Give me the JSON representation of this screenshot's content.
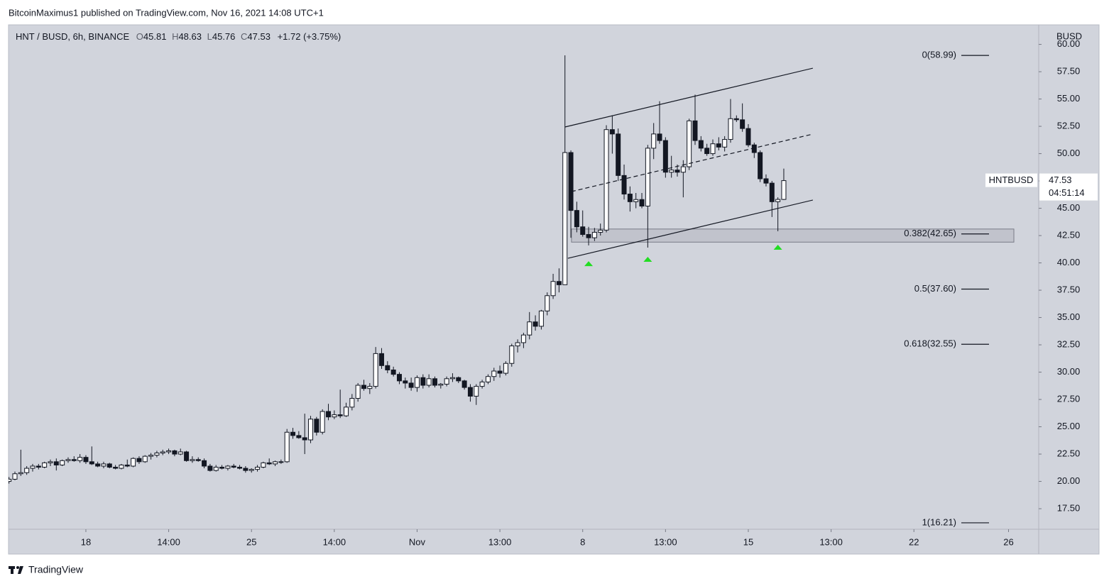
{
  "header": {
    "publisher": "BitcoinMaximus1 published on TradingView.com, Nov 16, 2021 14:08 UTC+1"
  },
  "footer": {
    "brand": "TradingView"
  },
  "chart_data": {
    "type": "candlestick",
    "symbol": "HNT / BUSD, 6h, BINANCE",
    "ohlc_letters": [
      "O",
      "H",
      "L",
      "C"
    ],
    "change": "+1.72 (+3.75%)",
    "currency": "BUSD",
    "ticker": "HNTBUSD",
    "countdown": "04:51:14",
    "up_color": "#ffffff",
    "down_color": "#131722",
    "xlim": [
      -0.08,
      174.1
    ],
    "ylim": [
      15.62,
      61.79
    ],
    "xticks": [
      {
        "value": 13,
        "label": "18"
      },
      {
        "value": 27,
        "label": "14:00"
      },
      {
        "value": 41,
        "label": "25"
      },
      {
        "value": 55,
        "label": "14:00"
      },
      {
        "value": 69,
        "label": "Nov"
      },
      {
        "value": 83,
        "label": "13:00"
      },
      {
        "value": 97,
        "label": "8"
      },
      {
        "value": 111,
        "label": "13:00"
      },
      {
        "value": 125,
        "label": "15"
      },
      {
        "value": 139,
        "label": "13:00"
      },
      {
        "value": 153,
        "label": "22"
      },
      {
        "value": 169,
        "label": "26"
      }
    ],
    "yticks": [
      {
        "value": 17.5,
        "label": "17.50"
      },
      {
        "value": 20,
        "label": "20.00"
      },
      {
        "value": 22.5,
        "label": "22.50"
      },
      {
        "value": 25,
        "label": "25.00"
      },
      {
        "value": 27.5,
        "label": "27.50"
      },
      {
        "value": 30,
        "label": "30.00"
      },
      {
        "value": 32.5,
        "label": "32.50"
      },
      {
        "value": 35,
        "label": "35.00"
      },
      {
        "value": 37.5,
        "label": "37.50"
      },
      {
        "value": 40,
        "label": "40.00"
      },
      {
        "value": 42.5,
        "label": "42.50"
      },
      {
        "value": 45,
        "label": "45.00"
      },
      {
        "value": 47.5,
        "label": "47.50"
      },
      {
        "value": 50,
        "label": "50.00"
      },
      {
        "value": 52.5,
        "label": "52.50"
      },
      {
        "value": 55,
        "label": "55.00"
      },
      {
        "value": 57.5,
        "label": "57.50"
      },
      {
        "value": 60,
        "label": "60.00"
      }
    ],
    "ohlc": [
      [
        20.0,
        20.4,
        19.8,
        20.2
      ],
      [
        20.2,
        20.9,
        20.1,
        20.7
      ],
      [
        20.7,
        22.9,
        20.5,
        20.8
      ],
      [
        20.8,
        21.4,
        20.6,
        21.2
      ],
      [
        21.2,
        21.6,
        20.9,
        21.4
      ],
      [
        21.4,
        21.6,
        21.1,
        21.3
      ],
      [
        21.3,
        21.8,
        21.2,
        21.7
      ],
      [
        21.7,
        22.0,
        21.4,
        21.8
      ],
      [
        21.8,
        22.1,
        21.0,
        21.5
      ],
      [
        21.5,
        22.0,
        21.4,
        21.9
      ],
      [
        21.9,
        22.2,
        21.7,
        22.0
      ],
      [
        22.0,
        22.3,
        21.8,
        21.9
      ],
      [
        21.9,
        22.5,
        21.7,
        22.2
      ],
      [
        22.2,
        22.4,
        21.6,
        21.8
      ],
      [
        21.8,
        23.2,
        21.5,
        21.6
      ],
      [
        21.6,
        21.8,
        21.3,
        21.4
      ],
      [
        21.4,
        21.8,
        21.2,
        21.6
      ],
      [
        21.6,
        21.7,
        21.2,
        21.3
      ],
      [
        21.3,
        21.5,
        21.1,
        21.2
      ],
      [
        21.2,
        21.6,
        21.1,
        21.5
      ],
      [
        21.5,
        22.0,
        21.3,
        21.4
      ],
      [
        21.4,
        22.2,
        21.3,
        22.1
      ],
      [
        22.1,
        22.3,
        21.6,
        21.8
      ],
      [
        21.8,
        22.4,
        21.7,
        22.3
      ],
      [
        22.3,
        22.6,
        22.0,
        22.4
      ],
      [
        22.4,
        22.8,
        22.2,
        22.6
      ],
      [
        22.6,
        22.9,
        22.4,
        22.7
      ],
      [
        22.7,
        23.0,
        22.5,
        22.8
      ],
      [
        22.8,
        22.9,
        22.3,
        22.5
      ],
      [
        22.5,
        23.0,
        22.4,
        22.7
      ],
      [
        22.7,
        22.8,
        21.8,
        21.9
      ],
      [
        21.9,
        22.3,
        21.7,
        22.0
      ],
      [
        22.0,
        22.2,
        21.8,
        21.9
      ],
      [
        21.9,
        22.1,
        21.2,
        21.4
      ],
      [
        21.4,
        21.6,
        20.9,
        21.0
      ],
      [
        21.0,
        21.5,
        20.9,
        21.3
      ],
      [
        21.3,
        21.5,
        21.1,
        21.2
      ],
      [
        21.2,
        21.5,
        21.0,
        21.4
      ],
      [
        21.4,
        21.6,
        21.2,
        21.3
      ],
      [
        21.3,
        21.5,
        21.1,
        21.2
      ],
      [
        21.2,
        21.4,
        20.8,
        21.0
      ],
      [
        21.0,
        21.2,
        20.8,
        21.1
      ],
      [
        21.1,
        21.5,
        20.9,
        21.3
      ],
      [
        21.3,
        21.8,
        21.2,
        21.7
      ],
      [
        21.7,
        22.1,
        21.5,
        21.6
      ],
      [
        21.6,
        21.9,
        21.4,
        21.8
      ],
      [
        21.8,
        22.0,
        21.6,
        21.8
      ],
      [
        21.8,
        24.8,
        21.7,
        24.5
      ],
      [
        24.5,
        24.9,
        23.9,
        24.2
      ],
      [
        24.2,
        24.6,
        23.9,
        24.0
      ],
      [
        24.0,
        26.2,
        22.5,
        23.8
      ],
      [
        23.8,
        26.0,
        23.5,
        25.7
      ],
      [
        25.7,
        25.9,
        24.2,
        24.5
      ],
      [
        24.5,
        26.6,
        24.3,
        26.4
      ],
      [
        26.4,
        27.1,
        25.6,
        25.9
      ],
      [
        25.9,
        26.5,
        25.7,
        26.1
      ],
      [
        26.1,
        28.4,
        25.8,
        26.0
      ],
      [
        26.0,
        27.2,
        25.9,
        26.8
      ],
      [
        26.8,
        28.0,
        26.5,
        27.6
      ],
      [
        27.6,
        29.0,
        27.3,
        28.8
      ],
      [
        28.8,
        29.3,
        28.3,
        28.5
      ],
      [
        28.5,
        29.0,
        28.0,
        28.7
      ],
      [
        28.7,
        32.3,
        28.5,
        31.7
      ],
      [
        31.7,
        32.2,
        30.3,
        30.6
      ],
      [
        30.6,
        31.0,
        29.9,
        30.2
      ],
      [
        30.2,
        30.5,
        29.6,
        29.8
      ],
      [
        29.8,
        30.0,
        28.9,
        29.2
      ],
      [
        29.2,
        29.5,
        28.5,
        29.0
      ],
      [
        29.0,
        29.5,
        28.3,
        28.6
      ],
      [
        28.6,
        29.7,
        28.2,
        29.5
      ],
      [
        29.5,
        29.8,
        28.5,
        28.8
      ],
      [
        28.8,
        29.8,
        28.6,
        29.4
      ],
      [
        29.4,
        29.6,
        28.6,
        28.8
      ],
      [
        28.8,
        29.0,
        28.5,
        28.9
      ],
      [
        28.9,
        29.6,
        28.7,
        29.4
      ],
      [
        29.4,
        29.9,
        29.1,
        29.5
      ],
      [
        29.5,
        29.6,
        29.0,
        29.2
      ],
      [
        29.2,
        29.3,
        28.4,
        28.6
      ],
      [
        28.6,
        28.9,
        27.3,
        27.8
      ],
      [
        27.8,
        28.9,
        27.0,
        28.7
      ],
      [
        28.7,
        29.3,
        28.5,
        29.1
      ],
      [
        29.1,
        29.8,
        28.9,
        29.6
      ],
      [
        29.6,
        30.4,
        29.2,
        30.1
      ],
      [
        30.1,
        30.6,
        29.5,
        29.9
      ],
      [
        29.9,
        31.0,
        29.7,
        30.8
      ],
      [
        30.8,
        32.6,
        30.5,
        32.4
      ],
      [
        32.4,
        33.0,
        31.8,
        32.7
      ],
      [
        32.7,
        33.6,
        32.2,
        33.4
      ],
      [
        33.4,
        35.5,
        33.0,
        34.6
      ],
      [
        34.6,
        35.2,
        33.8,
        34.2
      ],
      [
        34.2,
        35.7,
        33.9,
        35.6
      ],
      [
        35.6,
        37.3,
        35.2,
        37.0
      ],
      [
        37.0,
        39.0,
        36.7,
        38.3
      ],
      [
        38.3,
        39.5,
        37.3,
        38.0
      ],
      [
        38.0,
        59.0,
        38.0,
        50.1
      ],
      [
        50.1,
        50.3,
        42.3,
        44.8
      ],
      [
        44.8,
        45.6,
        42.8,
        43.3
      ],
      [
        43.3,
        44.8,
        42.4,
        42.6
      ],
      [
        42.6,
        43.3,
        41.6,
        42.3
      ],
      [
        42.3,
        43.2,
        42.0,
        42.8
      ],
      [
        42.8,
        43.6,
        42.5,
        43.0
      ],
      [
        43.0,
        52.6,
        42.8,
        52.2
      ],
      [
        52.2,
        53.5,
        50.0,
        51.8
      ],
      [
        51.8,
        52.3,
        47.5,
        48.0
      ],
      [
        48.0,
        49.0,
        45.8,
        46.3
      ],
      [
        46.3,
        47.0,
        44.7,
        45.6
      ],
      [
        45.6,
        46.4,
        45.0,
        45.8
      ],
      [
        45.8,
        46.4,
        45.0,
        45.2
      ],
      [
        45.2,
        50.8,
        41.4,
        50.5
      ],
      [
        50.5,
        52.8,
        49.5,
        51.8
      ],
      [
        51.8,
        54.8,
        50.9,
        51.2
      ],
      [
        51.2,
        51.5,
        47.8,
        48.3
      ],
      [
        48.3,
        49.8,
        47.8,
        48.5
      ],
      [
        48.5,
        49.0,
        47.9,
        48.3
      ],
      [
        48.3,
        49.4,
        46.0,
        48.8
      ],
      [
        48.8,
        53.2,
        48.5,
        53.0
      ],
      [
        53.0,
        55.4,
        50.8,
        51.2
      ],
      [
        51.2,
        51.6,
        50.2,
        50.5
      ],
      [
        50.5,
        50.9,
        49.8,
        50.0
      ],
      [
        50.0,
        51.3,
        49.8,
        50.9
      ],
      [
        50.9,
        51.5,
        50.3,
        50.6
      ],
      [
        50.6,
        51.6,
        50.2,
        51.3
      ],
      [
        51.3,
        55.0,
        51.0,
        53.2
      ],
      [
        53.2,
        53.5,
        52.9,
        53.1
      ],
      [
        53.1,
        54.6,
        52.0,
        52.3
      ],
      [
        52.3,
        52.7,
        50.6,
        50.8
      ],
      [
        50.8,
        51.0,
        49.6,
        50.1
      ],
      [
        50.1,
        50.3,
        47.4,
        47.7
      ],
      [
        47.7,
        48.1,
        47.0,
        47.3
      ],
      [
        47.3,
        47.5,
        44.2,
        45.6
      ],
      [
        45.6,
        46.0,
        42.9,
        45.81
      ],
      [
        45.81,
        48.63,
        45.76,
        47.53
      ]
    ],
    "fib_levels": [
      {
        "value": 58.99,
        "label": "0(58.99)"
      },
      {
        "value": 42.65,
        "label": "0.382(42.65)"
      },
      {
        "value": 37.6,
        "label": "0.5(37.60)"
      },
      {
        "value": 32.55,
        "label": "0.618(32.55)"
      },
      {
        "value": 16.21,
        "label": "1(16.21)"
      }
    ],
    "zone": {
      "x": [
        95.1,
        169.9
      ],
      "y": [
        41.9,
        43.1
      ]
    },
    "trendlines": [
      {
        "x": [
          94.0,
          135.9
        ],
        "y": [
          52.44,
          57.82
        ],
        "dashed": false
      },
      {
        "x": [
          95.1,
          135.9
        ],
        "y": [
          46.53,
          51.79
        ],
        "dashed": true
      },
      {
        "x": [
          94.5,
          135.9
        ],
        "y": [
          40.42,
          45.75
        ],
        "dashed": false
      }
    ],
    "markers": {
      "color": "#22dd22",
      "x": [
        98,
        108,
        130
      ],
      "y": [
        39.9,
        40.3,
        41.4
      ]
    }
  }
}
